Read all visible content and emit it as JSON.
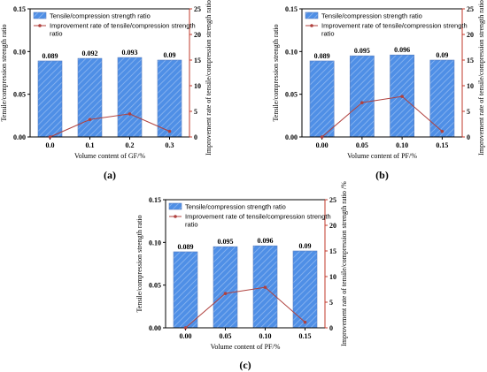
{
  "figure": {
    "colors": {
      "bar": "#4f8fe6",
      "bar_edge": "#5a7fbf",
      "line": "#b0413e",
      "right_axis": "#c0392b",
      "axis": "#000000"
    }
  },
  "chart_data": [
    {
      "panel_label": "(a)",
      "type": "bar",
      "categories": [
        "0.0",
        "0.1",
        "0.2",
        "0.3"
      ],
      "xlabel": "Volume content of  GF/%",
      "ylabel": "Tensile/compression strength ratio",
      "y2label": "Improvement rate  of tensile/compression strength ratio /%",
      "ylim": [
        0.0,
        0.15
      ],
      "yticks": [
        "0.00",
        "0.05",
        "0.10",
        "0.15"
      ],
      "y2lim": [
        0,
        25
      ],
      "y2ticks": [
        "0",
        "5",
        "10",
        "15",
        "20",
        "25"
      ],
      "legend_position": "top-left",
      "series": [
        {
          "name": "Tensile/compression strength ratio",
          "type": "bar",
          "axis": "left",
          "values": [
            0.089,
            0.092,
            0.093,
            0.09
          ],
          "labels": [
            "0.089",
            "0.092",
            "0.093",
            "0.09"
          ]
        },
        {
          "name": "Improvement rate  of tensile/compression strength ratio",
          "type": "line",
          "axis": "right",
          "values": [
            0,
            3.4,
            4.5,
            1.1
          ]
        }
      ]
    },
    {
      "panel_label": "(b)",
      "type": "bar",
      "categories": [
        "0.00",
        "0.05",
        "0.10",
        "0.15"
      ],
      "xlabel": "Volume content of  PF/%",
      "ylabel": "Tensile/compression strength ratio",
      "y2label": "Improvement rate of tensile/compression strength ratio /%",
      "ylim": [
        0.0,
        0.15
      ],
      "yticks": [
        "0.00",
        "0.05",
        "0.10",
        "0.15"
      ],
      "y2lim": [
        0,
        25
      ],
      "y2ticks": [
        "0",
        "5",
        "10",
        "15",
        "20",
        "25"
      ],
      "legend_position": "top-left",
      "series": [
        {
          "name": "Tensile/compression strength ratio",
          "type": "bar",
          "axis": "left",
          "values": [
            0.089,
            0.095,
            0.096,
            0.09
          ],
          "labels": [
            "0.089",
            "0.095",
            "0.096",
            "0.09"
          ]
        },
        {
          "name": "Improvement rate of tensile/compression strength ratio",
          "type": "line",
          "axis": "right",
          "values": [
            0,
            6.7,
            7.9,
            1.1
          ]
        }
      ]
    },
    {
      "panel_label": "(c)",
      "type": "bar",
      "categories": [
        "0.00",
        "0.05",
        "0.10",
        "0.15"
      ],
      "xlabel": "Volume content of  PF/%",
      "ylabel": "Tensile/compression strength ratio",
      "y2label": "Improvement rate of tensile/compression strength ratio /%",
      "ylim": [
        0.0,
        0.15
      ],
      "yticks": [
        "0.00",
        "0.05",
        "0.10",
        "0.15"
      ],
      "y2lim": [
        0,
        25
      ],
      "y2ticks": [
        "0",
        "5",
        "10",
        "15",
        "20",
        "25"
      ],
      "legend_position": "top-left",
      "series": [
        {
          "name": "Tensile/compression strength ratio",
          "type": "bar",
          "axis": "left",
          "values": [
            0.089,
            0.095,
            0.096,
            0.09
          ],
          "labels": [
            "0.089",
            "0.095",
            "0.096",
            "0.09"
          ]
        },
        {
          "name": "Improvement rate of tensile/compression strength ratio",
          "type": "line",
          "axis": "right",
          "values": [
            0,
            6.7,
            7.9,
            1.1
          ]
        }
      ]
    }
  ]
}
